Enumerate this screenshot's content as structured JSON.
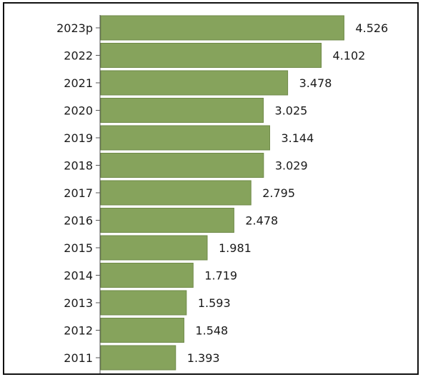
{
  "chart_data": {
    "type": "bar",
    "orientation": "horizontal",
    "categories": [
      "2023p",
      "2022",
      "2021",
      "2020",
      "2019",
      "2018",
      "2017",
      "2016",
      "2015",
      "2014",
      "2013",
      "2012",
      "2011"
    ],
    "values": [
      4.526,
      4.102,
      3.478,
      3.025,
      3.144,
      3.029,
      2.795,
      2.478,
      1.981,
      1.719,
      1.593,
      1.548,
      1.393
    ],
    "value_labels": [
      "4.526",
      "4.102",
      "3.478",
      "3.025",
      "3.144",
      "3.029",
      "2.795",
      "2.478",
      "1.981",
      "1.719",
      "1.593",
      "1.548",
      "1.393"
    ],
    "title": "",
    "xlabel": "",
    "ylabel": "",
    "xlim": [
      0,
      4.6
    ],
    "grid": false,
    "bar_color": "#86a35c",
    "bar_edge_color": "#6f8a48"
  }
}
